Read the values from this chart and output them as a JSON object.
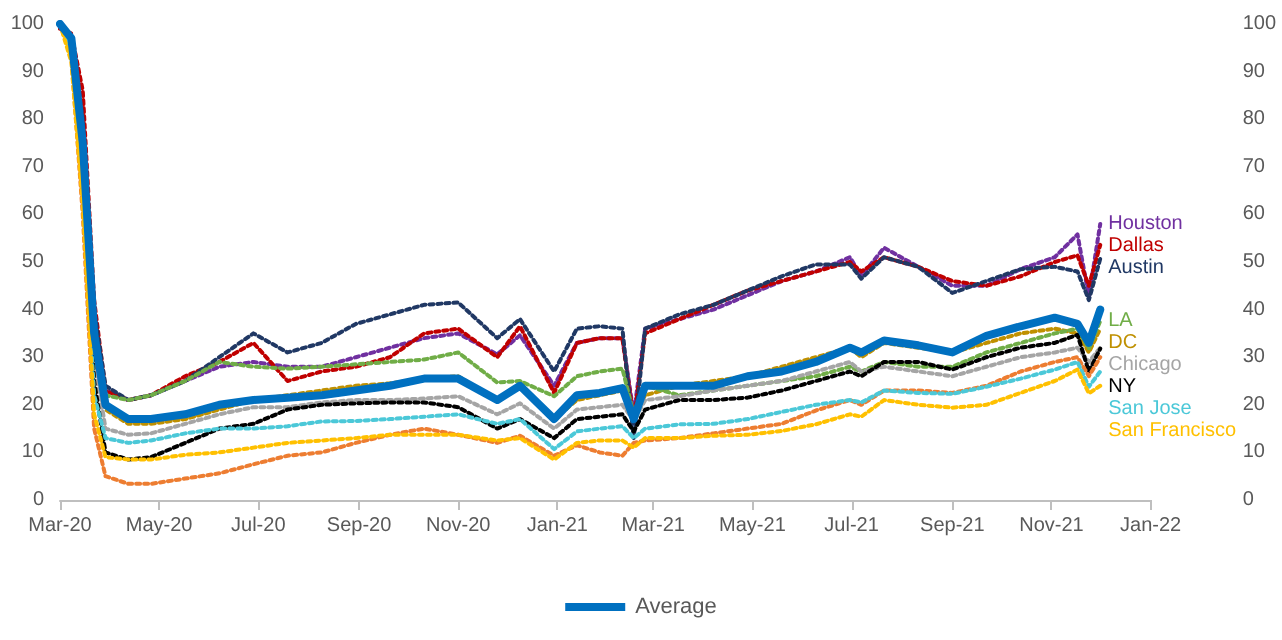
{
  "chart_data": {
    "type": "line",
    "x": [
      "2020-03-01",
      "2020-03-08",
      "2020-03-15",
      "2020-03-22",
      "2020-03-29",
      "2020-04-12",
      "2020-04-26",
      "2020-05-17",
      "2020-06-07",
      "2020-06-28",
      "2020-07-19",
      "2020-08-09",
      "2020-08-30",
      "2020-09-20",
      "2020-10-11",
      "2020-11-01",
      "2020-11-25",
      "2020-12-09",
      "2020-12-30",
      "2021-01-13",
      "2021-01-27",
      "2021-02-10",
      "2021-02-17",
      "2021-02-24",
      "2021-03-17",
      "2021-04-07",
      "2021-04-28",
      "2021-05-19",
      "2021-06-09",
      "2021-06-30",
      "2021-07-07",
      "2021-07-21",
      "2021-08-11",
      "2021-09-01",
      "2021-09-22",
      "2021-10-13",
      "2021-11-03",
      "2021-11-17",
      "2021-11-24",
      "2021-12-01"
    ],
    "series": [
      {
        "name": "Houston",
        "color": "#7030a0",
        "line_style": "dotted",
        "values": [
          100,
          97,
          77,
          37,
          23,
          21,
          22,
          25,
          28,
          29,
          28,
          28,
          30,
          32,
          34,
          35,
          30.6,
          34.6,
          24,
          33,
          34,
          34,
          18,
          36,
          38,
          40,
          43,
          46,
          48,
          51,
          47,
          53,
          49,
          45,
          45,
          48.5,
          51,
          55.8,
          42.7,
          58
        ]
      },
      {
        "name": "Dallas",
        "color": "#c00000",
        "line_style": "dotted",
        "values": [
          99,
          98,
          86,
          42,
          23,
          21,
          22,
          26,
          29,
          33,
          25,
          27,
          28,
          30,
          35,
          36,
          30,
          36.5,
          22.5,
          33,
          34,
          34,
          16.6,
          35,
          38,
          41,
          44,
          46,
          48,
          50,
          48,
          51,
          49,
          46,
          45,
          47,
          50,
          51.4,
          45,
          53.6
        ]
      },
      {
        "name": "Austin",
        "color": "#203864",
        "line_style": "dotted",
        "values": [
          100,
          97,
          80,
          40,
          24,
          21,
          22,
          25,
          30,
          35,
          31,
          33,
          37,
          39,
          41,
          41.5,
          34,
          38,
          27,
          36,
          36.5,
          36,
          13,
          36,
          39,
          41,
          44,
          47,
          49.5,
          49.5,
          46.5,
          51,
          49,
          43.5,
          46,
          48.5,
          49,
          48,
          42,
          50.7
        ]
      },
      {
        "name": "DC",
        "color": "#bf9000",
        "line_style": "dotted",
        "values": [
          100,
          96,
          74,
          34,
          19,
          16,
          16,
          17,
          19,
          21,
          22,
          23,
          24,
          24.5,
          25.5,
          26,
          21,
          24,
          17,
          21,
          22,
          23,
          18,
          22,
          24,
          25,
          26,
          28,
          30,
          32,
          30,
          33,
          32,
          31,
          33,
          35,
          36,
          35,
          31,
          36
        ]
      },
      {
        "name": "LA",
        "color": "#70ad47",
        "line_style": "dotted",
        "values": [
          100,
          96,
          74,
          34,
          22,
          21,
          22,
          25,
          29,
          28,
          27.6,
          28,
          28.5,
          29,
          29.5,
          31,
          24.7,
          25,
          21.8,
          26,
          27,
          27.6,
          18,
          24,
          22,
          23,
          24,
          25,
          26,
          28,
          27,
          29,
          28,
          28,
          31,
          33,
          35,
          36,
          31.8,
          37.6
        ]
      },
      {
        "name": "Chicago",
        "color": "#a5a5a5",
        "line_style": "dotted",
        "values": [
          100,
          95,
          70,
          30,
          15,
          13.7,
          14,
          16,
          18,
          19.5,
          19.5,
          20.5,
          21,
          21,
          21.3,
          21.8,
          18,
          20.3,
          15,
          19,
          19.5,
          20,
          16.6,
          21,
          21.8,
          23,
          24,
          25,
          27,
          29,
          27,
          28,
          27,
          26,
          28,
          30,
          31,
          32,
          29,
          32
        ]
      },
      {
        "name": "NY",
        "color": "#000000",
        "line_style": "dotted",
        "values": [
          100,
          95,
          68,
          25,
          10,
          8.5,
          9,
          12,
          15,
          16,
          19,
          20,
          20.3,
          20.5,
          20.5,
          19.5,
          15,
          17,
          13,
          17,
          17.5,
          18,
          14.4,
          19,
          21,
          21,
          21.5,
          23,
          25,
          27,
          26,
          29,
          29,
          27.4,
          30,
          32,
          33,
          34.7,
          27,
          31.8
        ]
      },
      {
        "color": "#ed7d31",
        "line_style": "dotted",
        "values": [
          100,
          93,
          60,
          15,
          5,
          3.4,
          3.4,
          4.5,
          5.6,
          7.5,
          9.3,
          10,
          12,
          13.7,
          15,
          13.7,
          12,
          13.5,
          9.3,
          11.5,
          10,
          9.3,
          12,
          12.5,
          13,
          14,
          15,
          16,
          18.8,
          21,
          20,
          23,
          23,
          22.5,
          24,
          27,
          29,
          30,
          26,
          30
        ]
      },
      {
        "name": "San Jose",
        "color": "#4bc8d8",
        "line_style": "dotted",
        "values": [
          100,
          94,
          65,
          22,
          13,
          12,
          12.5,
          14,
          15,
          15,
          15.5,
          16.5,
          16.6,
          17,
          17.5,
          18,
          16,
          17,
          10.7,
          14.4,
          15,
          15.5,
          13,
          15,
          15.9,
          16,
          17,
          18.5,
          20,
          21,
          20.5,
          23,
          22.5,
          22.3,
          23.8,
          25.5,
          27.4,
          29,
          23.8,
          27
        ]
      },
      {
        "name": "San Francisco",
        "color": "#ffc000",
        "line_style": "dotted",
        "values": [
          100,
          92,
          62,
          18,
          9,
          8.5,
          8.5,
          9.5,
          10,
          11,
          12,
          12.5,
          13,
          13.7,
          13.7,
          13.7,
          12.5,
          13,
          8.5,
          12,
          12.5,
          12.5,
          11,
          13,
          13,
          13.5,
          13.7,
          14.5,
          15.9,
          18,
          17.5,
          21,
          20,
          19.4,
          20,
          22.5,
          25,
          27.4,
          22.4,
          24
        ]
      },
      {
        "name": "Average",
        "color": "#0070c0",
        "line_style": "solid",
        "values": [
          100,
          97,
          75,
          35,
          20,
          17,
          17,
          18,
          20,
          21,
          21.5,
          22,
          23,
          24,
          25.5,
          25.5,
          21,
          24,
          17,
          22,
          22.5,
          23.5,
          17,
          24,
          24,
          24,
          26,
          27,
          29,
          32,
          31,
          33.5,
          32.5,
          31,
          34.5,
          36.5,
          38.3,
          37,
          33,
          40
        ]
      }
    ],
    "xlim": [
      "2020-03-01",
      "2022-01-01"
    ],
    "xticks": [
      {
        "value": "2020-03-01",
        "label": "Mar-20"
      },
      {
        "value": "2020-05-01",
        "label": "May-20"
      },
      {
        "value": "2020-07-01",
        "label": "Jul-20"
      },
      {
        "value": "2020-09-01",
        "label": "Sep-20"
      },
      {
        "value": "2020-11-01",
        "label": "Nov-20"
      },
      {
        "value": "2021-01-01",
        "label": "Jan-21"
      },
      {
        "value": "2021-03-01",
        "label": "Mar-21"
      },
      {
        "value": "2021-05-01",
        "label": "May-21"
      },
      {
        "value": "2021-07-01",
        "label": "Jul-21"
      },
      {
        "value": "2021-09-01",
        "label": "Sep-21"
      },
      {
        "value": "2021-11-01",
        "label": "Nov-21"
      },
      {
        "value": "2022-01-01",
        "label": "Jan-22"
      }
    ],
    "ylim": [
      0,
      100
    ],
    "yticks": [
      0,
      10,
      20,
      30,
      40,
      50,
      60,
      70,
      80,
      90,
      100
    ],
    "y2lim": [
      0,
      100
    ],
    "y2ticks": [
      0,
      10,
      20,
      30,
      40,
      50,
      60,
      70,
      80,
      90,
      100
    ],
    "grid": false,
    "legend": "bottom",
    "marker": "none"
  }
}
